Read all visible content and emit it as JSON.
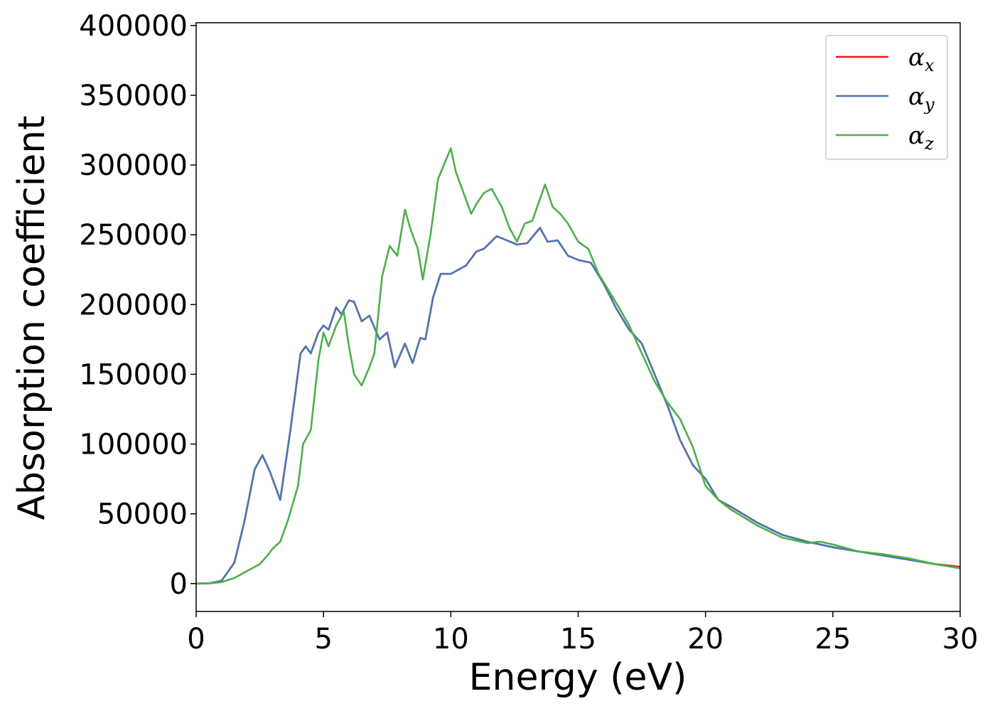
{
  "chart_data": {
    "type": "line",
    "title": "",
    "xlabel": "Energy (eV)",
    "ylabel": "Absorption coefficient",
    "xlim": [
      0,
      30
    ],
    "ylim": [
      -20000,
      402000
    ],
    "xticks": [
      0,
      5,
      10,
      15,
      20,
      25,
      30
    ],
    "yticks": [
      0,
      50000,
      100000,
      150000,
      200000,
      250000,
      300000,
      350000,
      400000
    ],
    "grid": false,
    "legend_position": "top-right",
    "series": [
      {
        "name": "α_x",
        "legend_symbol": "α",
        "legend_sub": "x",
        "color": "#e41a1c",
        "x": [
          0,
          0.5,
          1.0,
          1.5,
          1.9,
          2.3,
          2.6,
          2.9,
          3.3,
          3.7,
          4.1,
          4.3,
          4.5,
          4.8,
          5.0,
          5.2,
          5.5,
          5.7,
          6.0,
          6.2,
          6.5,
          6.8,
          7.2,
          7.5,
          7.8,
          8.2,
          8.5,
          8.8,
          9.0,
          9.3,
          9.6,
          10.0,
          10.3,
          10.6,
          11.0,
          11.3,
          11.8,
          12.2,
          12.6,
          13.0,
          13.5,
          13.8,
          14.2,
          14.6,
          15.0,
          15.5,
          16.0,
          16.5,
          17.0,
          17.5,
          18.0,
          18.5,
          19.0,
          19.5,
          20.0,
          20.5,
          21.0,
          22.0,
          23.0,
          24.0,
          25.0,
          26.0,
          27.0,
          28.0,
          29.0,
          30.0
        ],
        "y": [
          0,
          200,
          2000,
          15000,
          45000,
          82000,
          92000,
          80000,
          60000,
          110000,
          165000,
          170000,
          165000,
          180000,
          185000,
          182000,
          198000,
          193000,
          203000,
          202000,
          188000,
          192000,
          175000,
          180000,
          155000,
          172000,
          158000,
          176000,
          175000,
          205000,
          222000,
          222000,
          225000,
          228000,
          238000,
          240000,
          249000,
          246000,
          243000,
          244000,
          255000,
          245000,
          246000,
          235000,
          232000,
          230000,
          215000,
          197000,
          182000,
          172000,
          150000,
          128000,
          103000,
          85000,
          75000,
          60000,
          55000,
          44000,
          35000,
          30000,
          26000,
          23000,
          20000,
          17000,
          14000,
          12000
        ]
      },
      {
        "name": "α_y",
        "legend_symbol": "α",
        "legend_sub": "y",
        "color": "#4a77b4",
        "x": [
          0,
          0.5,
          1.0,
          1.5,
          1.9,
          2.3,
          2.6,
          2.9,
          3.3,
          3.7,
          4.1,
          4.3,
          4.5,
          4.8,
          5.0,
          5.2,
          5.5,
          5.7,
          6.0,
          6.2,
          6.5,
          6.8,
          7.2,
          7.5,
          7.8,
          8.2,
          8.5,
          8.8,
          9.0,
          9.3,
          9.6,
          10.0,
          10.3,
          10.6,
          11.0,
          11.3,
          11.8,
          12.2,
          12.6,
          13.0,
          13.5,
          13.8,
          14.2,
          14.6,
          15.0,
          15.5,
          16.0,
          16.5,
          17.0,
          17.5,
          18.0,
          18.5,
          19.0,
          19.5,
          20.0,
          20.5,
          21.0,
          22.0,
          23.0,
          24.0,
          25.0,
          26.0,
          27.0,
          28.0,
          29.0,
          30.0
        ],
        "y": [
          0,
          200,
          2000,
          15000,
          45000,
          82000,
          92000,
          80000,
          60000,
          110000,
          165000,
          170000,
          165000,
          180000,
          185000,
          182000,
          198000,
          193000,
          203000,
          202000,
          188000,
          192000,
          175000,
          180000,
          155000,
          172000,
          158000,
          176000,
          175000,
          205000,
          222000,
          222000,
          225000,
          228000,
          238000,
          240000,
          249000,
          246000,
          243000,
          244000,
          255000,
          245000,
          246000,
          235000,
          232000,
          230000,
          215000,
          197000,
          182000,
          172000,
          150000,
          128000,
          103000,
          85000,
          75000,
          60000,
          55000,
          44000,
          35000,
          30000,
          26000,
          23000,
          20000,
          17000,
          14000,
          11000
        ]
      },
      {
        "name": "α_z",
        "legend_symbol": "α",
        "legend_sub": "z",
        "color": "#4daf4a",
        "x": [
          0,
          0.5,
          1.0,
          1.5,
          2.0,
          2.5,
          2.8,
          3.0,
          3.3,
          3.6,
          4.0,
          4.2,
          4.5,
          4.8,
          5.0,
          5.2,
          5.5,
          5.8,
          6.0,
          6.2,
          6.5,
          6.8,
          7.0,
          7.3,
          7.6,
          7.9,
          8.2,
          8.4,
          8.7,
          8.9,
          9.2,
          9.5,
          10.0,
          10.2,
          10.5,
          10.8,
          11.0,
          11.3,
          11.6,
          12.0,
          12.3,
          12.6,
          12.9,
          13.2,
          13.7,
          14.0,
          14.3,
          14.6,
          15.0,
          15.4,
          15.8,
          16.2,
          16.6,
          17.0,
          17.5,
          18.0,
          18.5,
          19.0,
          19.5,
          20.0,
          20.5,
          21.0,
          22.0,
          23.0,
          24.0,
          24.5,
          25.0,
          26.0,
          27.0,
          28.0,
          29.0,
          30.0
        ],
        "y": [
          0,
          200,
          1000,
          4000,
          9000,
          14000,
          20000,
          25000,
          30000,
          45000,
          70000,
          100000,
          110000,
          160000,
          180000,
          170000,
          185000,
          195000,
          170000,
          150000,
          142000,
          155000,
          165000,
          220000,
          242000,
          235000,
          268000,
          255000,
          240000,
          218000,
          250000,
          290000,
          312000,
          295000,
          280000,
          265000,
          272000,
          280000,
          283000,
          270000,
          255000,
          245000,
          258000,
          260000,
          286000,
          270000,
          265000,
          258000,
          245000,
          240000,
          222000,
          210000,
          198000,
          185000,
          165000,
          145000,
          130000,
          118000,
          98000,
          70000,
          60000,
          53000,
          42000,
          33000,
          29000,
          30000,
          28000,
          23000,
          21000,
          18000,
          14000,
          11000
        ]
      }
    ]
  }
}
